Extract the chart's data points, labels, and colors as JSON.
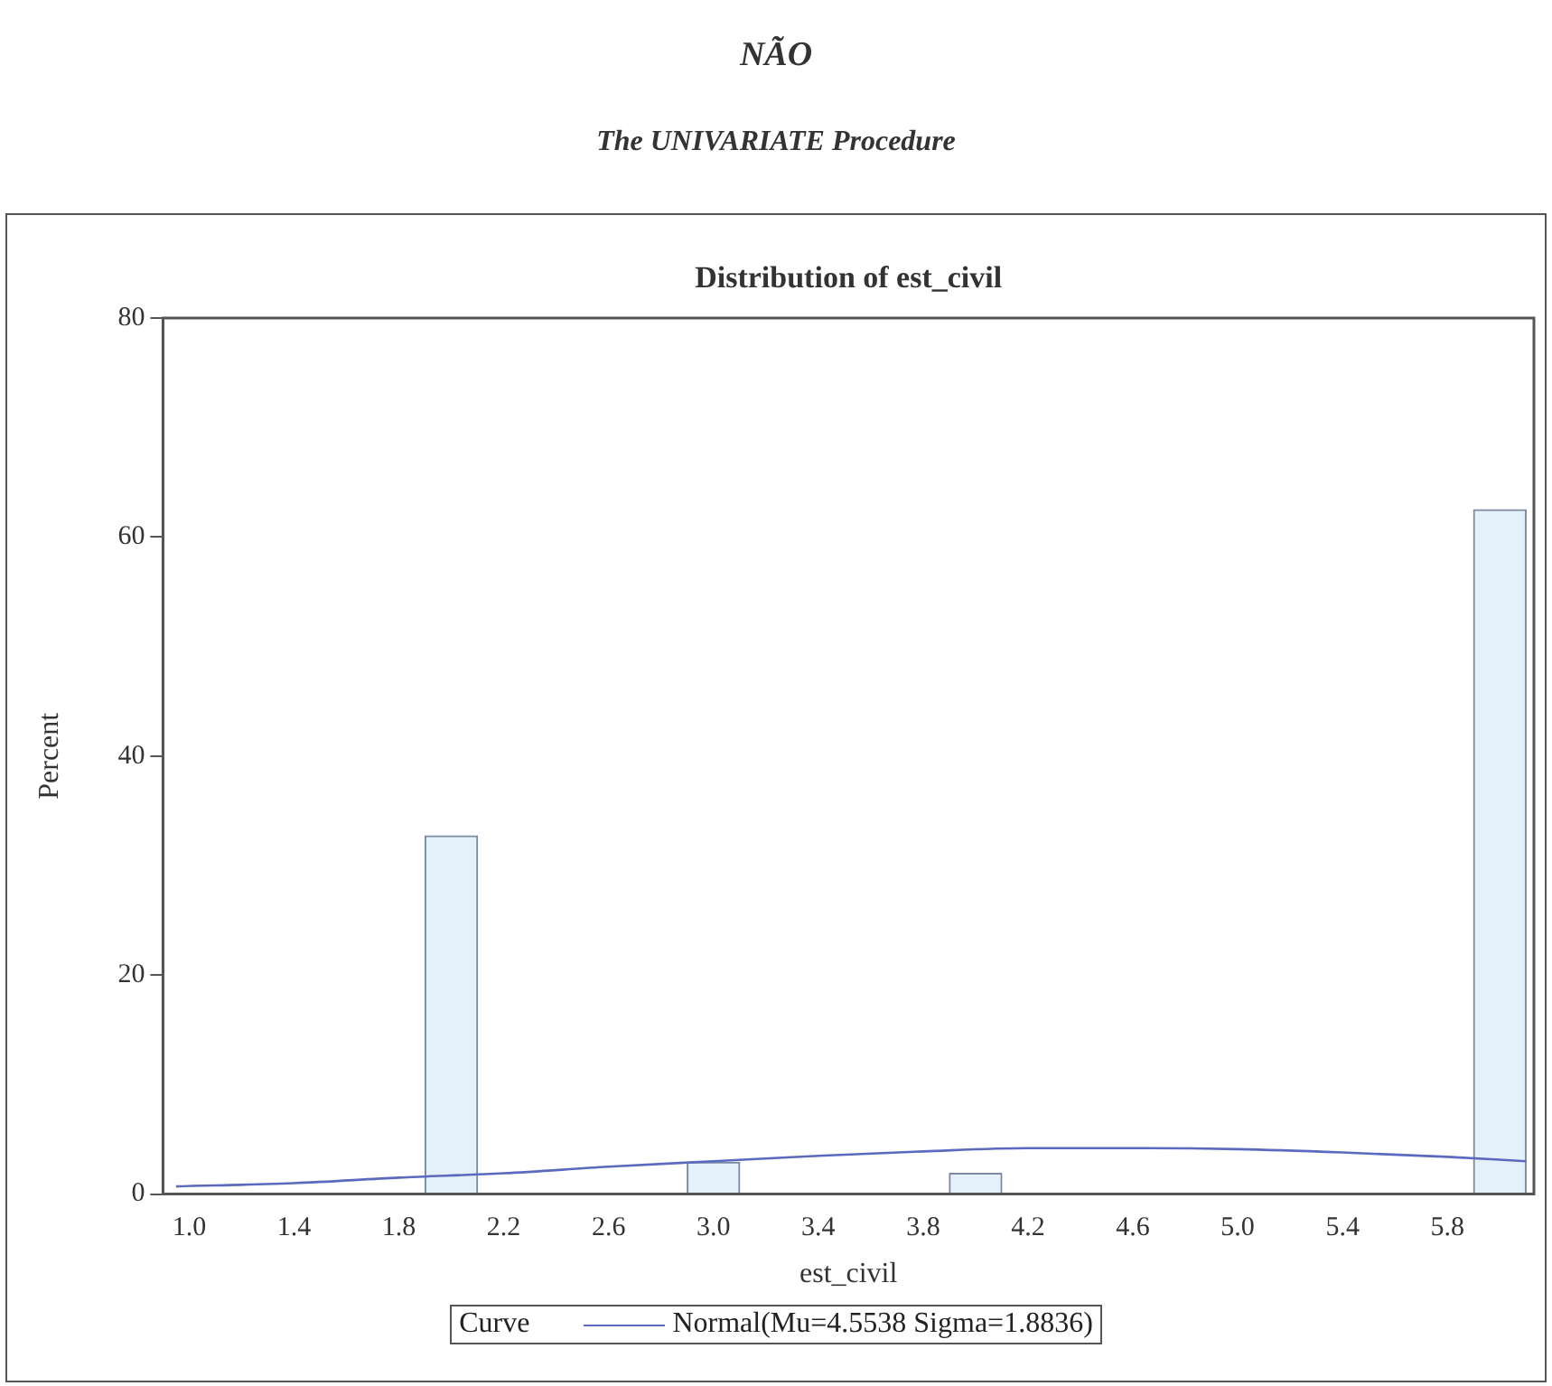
{
  "chart_data": {
    "type": "histogram",
    "title": "NÃO",
    "subtitle": "The UNIVARIATE Procedure",
    "annotations": [
      "Distribution of est_civil"
    ],
    "xlabel": "est_civil",
    "ylabel": "Percent",
    "legend_title": "Curve",
    "legend": "bottom",
    "grid": false,
    "bins": [
      0.9,
      1.1,
      1.3,
      1.5,
      1.7,
      1.9,
      2.1,
      2.3,
      2.5,
      2.7,
      2.9,
      3.1,
      3.3,
      3.5,
      3.7,
      3.9,
      4.1,
      4.3,
      4.5,
      4.7,
      4.9,
      5.1,
      5.3,
      5.5,
      5.7,
      5.9,
      6.1
    ],
    "values": [
      0,
      0,
      0,
      0,
      0,
      32.7,
      0,
      0,
      0,
      0,
      2.9,
      0,
      0,
      0,
      0,
      1.9,
      0,
      0,
      0,
      0,
      0,
      0,
      0,
      0,
      0,
      62.5
    ],
    "color": "#e4f1fb",
    "series": [
      {
        "name": "Normal(Mu=4.5538 Sigma=1.8836)",
        "type": "line",
        "color": "#5b6abf",
        "x": [
          0.95,
          1.4,
          1.8,
          2.2,
          2.6,
          3.0,
          3.4,
          3.8,
          4.2,
          4.6,
          5.0,
          5.4,
          5.8,
          6.1
        ],
        "values": [
          0.7,
          1,
          1.5,
          1.9,
          2.5,
          3,
          3.5,
          3.9,
          4.2,
          4.2,
          4.1,
          3.8,
          3.4,
          3
        ]
      }
    ],
    "xlim": [
      0.9,
      6.13
    ],
    "xticks": [
      {
        "value": 1,
        "label": "1.0"
      },
      1.4,
      1.8,
      2.2,
      2.6,
      {
        "value": 3,
        "label": "3.0"
      },
      3.4,
      3.8,
      4.2,
      4.6,
      {
        "value": 5,
        "label": "5.0"
      },
      5.4,
      5.8
    ],
    "ylim": [
      0,
      80
    ],
    "yticks": [
      0,
      20,
      40,
      60,
      80
    ]
  }
}
